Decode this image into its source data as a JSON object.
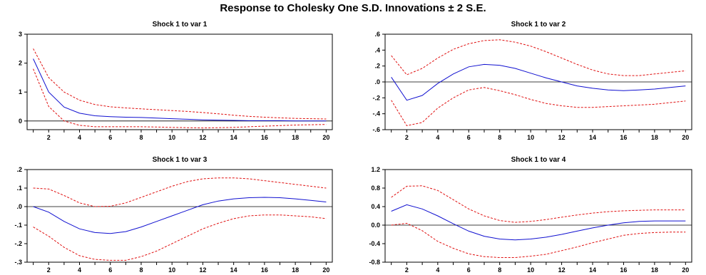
{
  "figure": {
    "title": "Response to Cholesky One S.D. Innovations ± 2 S.E."
  },
  "colors": {
    "response": "#1010d0",
    "bands": "#e01010",
    "zero": "#000000",
    "frame": "#000000"
  },
  "chart_data": [
    {
      "type": "line",
      "title": "Shock 1 to var 1",
      "x": [
        1,
        2,
        3,
        4,
        5,
        6,
        7,
        8,
        9,
        10,
        11,
        12,
        13,
        14,
        15,
        16,
        17,
        18,
        19,
        20
      ],
      "xticks": [
        2,
        4,
        6,
        8,
        10,
        12,
        14,
        16,
        18,
        20
      ],
      "ylim": [
        -0.3,
        3.0
      ],
      "yticks": [
        0,
        1,
        2,
        3
      ],
      "ytick_labels": [
        "0",
        "1",
        "2",
        "3"
      ],
      "series": [
        {
          "role": "response",
          "values": [
            2.15,
            1.0,
            0.48,
            0.27,
            0.18,
            0.15,
            0.13,
            0.12,
            0.1,
            0.08,
            0.06,
            0.04,
            0.03,
            0.02,
            0.01,
            0.01,
            0.01,
            0.0,
            0.0,
            0.0
          ]
        },
        {
          "role": "upper",
          "values": [
            2.5,
            1.5,
            1.0,
            0.72,
            0.57,
            0.49,
            0.45,
            0.42,
            0.39,
            0.36,
            0.33,
            0.29,
            0.25,
            0.2,
            0.16,
            0.13,
            0.11,
            0.09,
            0.08,
            0.07
          ]
        },
        {
          "role": "lower",
          "values": [
            1.8,
            0.5,
            0.0,
            -0.15,
            -0.2,
            -0.2,
            -0.2,
            -0.2,
            -0.21,
            -0.22,
            -0.23,
            -0.24,
            -0.23,
            -0.22,
            -0.2,
            -0.18,
            -0.16,
            -0.14,
            -0.13,
            -0.12
          ]
        }
      ]
    },
    {
      "type": "line",
      "title": "Shock 1 to var 2",
      "x": [
        1,
        2,
        3,
        4,
        5,
        6,
        7,
        8,
        9,
        10,
        11,
        12,
        13,
        14,
        15,
        16,
        17,
        18,
        19,
        20
      ],
      "xticks": [
        2,
        4,
        6,
        8,
        10,
        12,
        14,
        16,
        18,
        20
      ],
      "ylim": [
        -0.6,
        0.6
      ],
      "yticks": [
        -0.6,
        -0.4,
        -0.2,
        0.0,
        0.2,
        0.4,
        0.6
      ],
      "ytick_labels": [
        "-.6",
        "-.4",
        "-.2",
        ".0",
        ".2",
        ".4",
        ".6"
      ],
      "series": [
        {
          "role": "response",
          "values": [
            0.06,
            -0.23,
            -0.17,
            -0.02,
            0.1,
            0.19,
            0.22,
            0.21,
            0.17,
            0.11,
            0.05,
            0.0,
            -0.05,
            -0.08,
            -0.1,
            -0.11,
            -0.1,
            -0.09,
            -0.07,
            -0.05
          ]
        },
        {
          "role": "upper",
          "values": [
            0.33,
            0.09,
            0.17,
            0.3,
            0.41,
            0.48,
            0.52,
            0.53,
            0.5,
            0.45,
            0.38,
            0.3,
            0.22,
            0.15,
            0.1,
            0.08,
            0.08,
            0.1,
            0.12,
            0.14
          ]
        },
        {
          "role": "lower",
          "values": [
            -0.23,
            -0.55,
            -0.51,
            -0.33,
            -0.2,
            -0.1,
            -0.07,
            -0.11,
            -0.16,
            -0.22,
            -0.27,
            -0.3,
            -0.32,
            -0.32,
            -0.31,
            -0.3,
            -0.29,
            -0.28,
            -0.26,
            -0.24
          ]
        }
      ]
    },
    {
      "type": "line",
      "title": "Shock 1 to var 3",
      "x": [
        1,
        2,
        3,
        4,
        5,
        6,
        7,
        8,
        9,
        10,
        11,
        12,
        13,
        14,
        15,
        16,
        17,
        18,
        19,
        20
      ],
      "xticks": [
        2,
        4,
        6,
        8,
        10,
        12,
        14,
        16,
        18,
        20
      ],
      "ylim": [
        -0.3,
        0.2
      ],
      "yticks": [
        -0.3,
        -0.2,
        -0.1,
        0.0,
        0.1,
        0.2
      ],
      "ytick_labels": [
        "-.3",
        "-.2",
        "-.1",
        ".0",
        ".1",
        ".2"
      ],
      "series": [
        {
          "role": "response",
          "values": [
            0.0,
            -0.03,
            -0.08,
            -0.12,
            -0.14,
            -0.145,
            -0.135,
            -0.11,
            -0.08,
            -0.05,
            -0.02,
            0.01,
            0.03,
            0.042,
            0.048,
            0.05,
            0.048,
            0.042,
            0.034,
            0.025
          ]
        },
        {
          "role": "upper",
          "values": [
            0.1,
            0.095,
            0.06,
            0.02,
            0.0,
            0.002,
            0.02,
            0.05,
            0.08,
            0.11,
            0.135,
            0.15,
            0.155,
            0.155,
            0.15,
            0.14,
            0.13,
            0.12,
            0.11,
            0.1
          ]
        },
        {
          "role": "lower",
          "values": [
            -0.11,
            -0.16,
            -0.22,
            -0.265,
            -0.285,
            -0.29,
            -0.29,
            -0.27,
            -0.24,
            -0.2,
            -0.16,
            -0.12,
            -0.09,
            -0.065,
            -0.05,
            -0.045,
            -0.045,
            -0.05,
            -0.055,
            -0.065
          ]
        }
      ]
    },
    {
      "type": "line",
      "title": "Shock 1 to var 4",
      "x": [
        1,
        2,
        3,
        4,
        5,
        6,
        7,
        8,
        9,
        10,
        11,
        12,
        13,
        14,
        15,
        16,
        17,
        18,
        19,
        20
      ],
      "xticks": [
        2,
        4,
        6,
        8,
        10,
        12,
        14,
        16,
        18,
        20
      ],
      "ylim": [
        -0.8,
        1.2
      ],
      "yticks": [
        -0.8,
        -0.4,
        0.0,
        0.4,
        0.8,
        1.2
      ],
      "ytick_labels": [
        "-0.8",
        "-0.4",
        "0.0",
        "0.4",
        "0.8",
        "1.2"
      ],
      "series": [
        {
          "role": "response",
          "values": [
            0.3,
            0.44,
            0.35,
            0.2,
            0.03,
            -0.13,
            -0.24,
            -0.3,
            -0.32,
            -0.3,
            -0.26,
            -0.2,
            -0.13,
            -0.06,
            0.0,
            0.05,
            0.08,
            0.09,
            0.09,
            0.09
          ]
        },
        {
          "role": "upper",
          "values": [
            0.6,
            0.84,
            0.85,
            0.75,
            0.55,
            0.35,
            0.2,
            0.1,
            0.06,
            0.08,
            0.12,
            0.17,
            0.22,
            0.26,
            0.29,
            0.31,
            0.32,
            0.33,
            0.33,
            0.33
          ]
        },
        {
          "role": "lower",
          "values": [
            0.0,
            0.04,
            -0.12,
            -0.35,
            -0.5,
            -0.62,
            -0.68,
            -0.7,
            -0.7,
            -0.67,
            -0.63,
            -0.55,
            -0.47,
            -0.38,
            -0.3,
            -0.22,
            -0.18,
            -0.16,
            -0.15,
            -0.15
          ]
        }
      ]
    }
  ]
}
